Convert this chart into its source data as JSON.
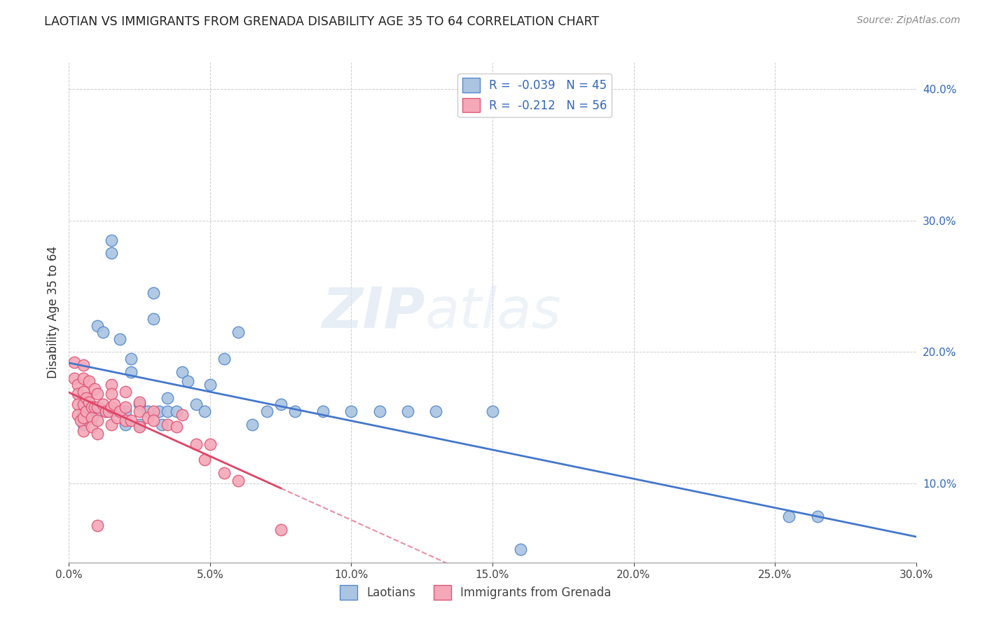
{
  "title": "LAOTIAN VS IMMIGRANTS FROM GRENADA DISABILITY AGE 35 TO 64 CORRELATION CHART",
  "source": "Source: ZipAtlas.com",
  "ylabel": "Disability Age 35 to 64",
  "xlim": [
    0.0,
    0.3
  ],
  "ylim": [
    0.04,
    0.42
  ],
  "xticks": [
    0.0,
    0.05,
    0.1,
    0.15,
    0.2,
    0.25,
    0.3
  ],
  "yticks": [
    0.1,
    0.2,
    0.3,
    0.4
  ],
  "blue_R": -0.039,
  "blue_N": 45,
  "pink_R": -0.212,
  "pink_N": 56,
  "blue_label": "Laotians",
  "pink_label": "Immigrants from Grenada",
  "blue_color": "#aac4e2",
  "pink_color": "#f4a8b8",
  "blue_edge": "#5588cc",
  "pink_edge": "#e05575",
  "trend_blue": "#4477cc",
  "trend_pink": "#e04466",
  "watermark_zip": "ZIP",
  "watermark_atlas": "atlas",
  "blue_x": [
    0.005,
    0.005,
    0.008,
    0.01,
    0.01,
    0.012,
    0.013,
    0.015,
    0.015,
    0.015,
    0.018,
    0.02,
    0.02,
    0.022,
    0.022,
    0.025,
    0.025,
    0.028,
    0.03,
    0.03,
    0.032,
    0.033,
    0.035,
    0.035,
    0.038,
    0.04,
    0.042,
    0.045,
    0.048,
    0.05,
    0.055,
    0.06,
    0.065,
    0.07,
    0.075,
    0.08,
    0.09,
    0.1,
    0.11,
    0.12,
    0.13,
    0.15,
    0.16,
    0.255,
    0.265
  ],
  "blue_y": [
    0.155,
    0.145,
    0.15,
    0.22,
    0.155,
    0.215,
    0.155,
    0.285,
    0.275,
    0.155,
    0.21,
    0.155,
    0.145,
    0.195,
    0.185,
    0.16,
    0.145,
    0.155,
    0.245,
    0.225,
    0.155,
    0.145,
    0.165,
    0.155,
    0.155,
    0.185,
    0.178,
    0.16,
    0.155,
    0.175,
    0.195,
    0.215,
    0.145,
    0.155,
    0.16,
    0.155,
    0.155,
    0.155,
    0.155,
    0.155,
    0.155,
    0.155,
    0.05,
    0.075,
    0.075
  ],
  "pink_x": [
    0.002,
    0.002,
    0.003,
    0.003,
    0.003,
    0.003,
    0.004,
    0.005,
    0.005,
    0.005,
    0.005,
    0.005,
    0.005,
    0.006,
    0.006,
    0.007,
    0.007,
    0.008,
    0.008,
    0.008,
    0.009,
    0.009,
    0.01,
    0.01,
    0.01,
    0.01,
    0.01,
    0.012,
    0.013,
    0.014,
    0.015,
    0.015,
    0.015,
    0.015,
    0.016,
    0.017,
    0.018,
    0.02,
    0.02,
    0.02,
    0.022,
    0.025,
    0.025,
    0.025,
    0.028,
    0.03,
    0.03,
    0.035,
    0.038,
    0.04,
    0.045,
    0.048,
    0.05,
    0.055,
    0.06,
    0.075
  ],
  "pink_y": [
    0.192,
    0.18,
    0.175,
    0.168,
    0.16,
    0.152,
    0.148,
    0.19,
    0.18,
    0.17,
    0.16,
    0.15,
    0.14,
    0.165,
    0.155,
    0.178,
    0.162,
    0.158,
    0.15,
    0.143,
    0.172,
    0.158,
    0.168,
    0.158,
    0.148,
    0.138,
    0.068,
    0.16,
    0.155,
    0.155,
    0.175,
    0.168,
    0.158,
    0.145,
    0.16,
    0.15,
    0.155,
    0.17,
    0.158,
    0.148,
    0.148,
    0.162,
    0.155,
    0.143,
    0.15,
    0.155,
    0.148,
    0.145,
    0.143,
    0.152,
    0.13,
    0.118,
    0.13,
    0.108,
    0.102,
    0.065
  ]
}
